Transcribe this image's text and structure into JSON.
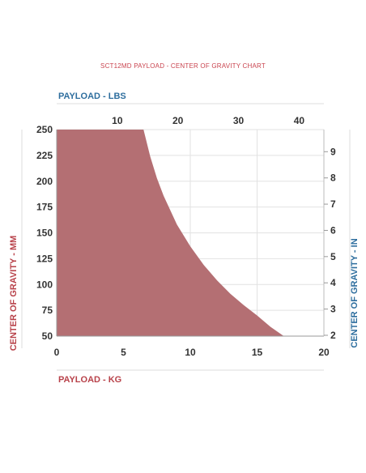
{
  "chart_data": {
    "type": "area",
    "title": "SCT12MD PAYLOAD - CENTER OF GRAVITY CHART",
    "x_bottom": {
      "label": "PAYLOAD - KG",
      "range": [
        0,
        20
      ],
      "ticks": [
        "0",
        "5",
        "10",
        "15",
        "20"
      ]
    },
    "x_top": {
      "label": "PAYLOAD - LBS",
      "ticks": [
        "10",
        "20",
        "30",
        "40"
      ]
    },
    "y_left": {
      "label": "CENTER OF GRAVITY - MM",
      "range": [
        50,
        250
      ],
      "ticks": [
        "50",
        "75",
        "100",
        "125",
        "150",
        "175",
        "200",
        "225",
        "250"
      ]
    },
    "y_right": {
      "label": "CENTER OF GRAVITY - IN",
      "ticks": [
        "2",
        "3",
        "4",
        "5",
        "6",
        "7",
        "8",
        "9"
      ]
    },
    "grid": true,
    "fill_color": "#b46f73",
    "curve": {
      "x": [
        0,
        6.5,
        7.0,
        7.5,
        8.0,
        9.0,
        10.0,
        11.0,
        12.0,
        13.0,
        14.0,
        15.0,
        16.0,
        17.0
      ],
      "y": [
        250,
        250,
        224,
        203,
        186,
        158,
        137,
        119,
        104,
        91,
        80,
        70,
        59,
        50
      ]
    }
  }
}
